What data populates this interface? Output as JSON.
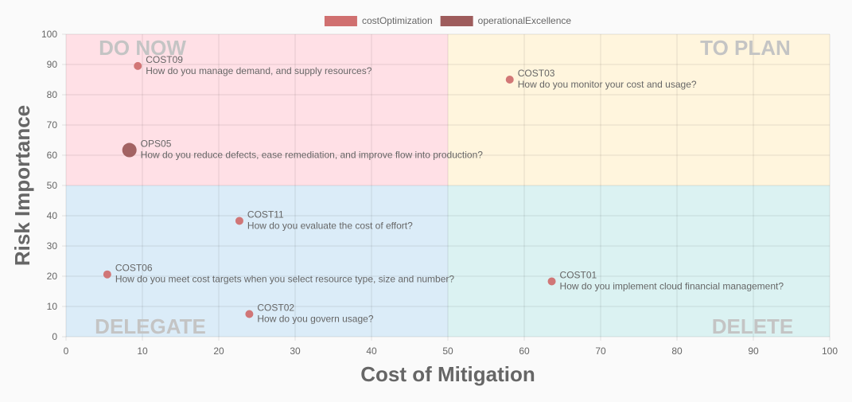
{
  "chart_data": {
    "type": "scatter",
    "xlabel": "Cost of Mitigation",
    "ylabel": "Risk Importance",
    "xlim": [
      0,
      100
    ],
    "ylim": [
      0,
      100
    ],
    "xticks": [
      0,
      10,
      20,
      30,
      40,
      50,
      60,
      70,
      80,
      90,
      100
    ],
    "yticks": [
      0,
      10,
      20,
      30,
      40,
      50,
      60,
      70,
      80,
      90,
      100
    ],
    "grid": true,
    "legend_position": "top-center",
    "quadrants": [
      {
        "label": "DO NOW",
        "x": [
          0,
          50
        ],
        "y": [
          50,
          100
        ],
        "color": "#ffe0e6"
      },
      {
        "label": "TO PLAN",
        "x": [
          50,
          100
        ],
        "y": [
          50,
          100
        ],
        "color": "#fff5dd"
      },
      {
        "label": "DELEGATE",
        "x": [
          0,
          50
        ],
        "y": [
          0,
          50
        ],
        "color": "#dbecf8"
      },
      {
        "label": "DELETE",
        "x": [
          50,
          100
        ],
        "y": [
          0,
          50
        ],
        "color": "#dbf2f2"
      }
    ],
    "series": [
      {
        "name": "costOptimization",
        "color": "#d07070",
        "points": [
          {
            "code": "COST09",
            "question": "How do you manage demand, and supply resources?",
            "x": 9.4,
            "y": 89.5,
            "r": 5
          },
          {
            "code": "COST03",
            "question": "How do you monitor your cost and usage?",
            "x": 58.1,
            "y": 85.0,
            "r": 5
          },
          {
            "code": "COST11",
            "question": "How do you evaluate the cost of effort?",
            "x": 22.7,
            "y": 38.3,
            "r": 5
          },
          {
            "code": "COST06",
            "question": "How do you meet cost targets when you select resource type, size and number?",
            "x": 5.4,
            "y": 20.6,
            "r": 5
          },
          {
            "code": "COST01",
            "question": "How do you implement cloud financial management?",
            "x": 63.6,
            "y": 18.3,
            "r": 5
          },
          {
            "code": "COST02",
            "question": "How do you govern usage?",
            "x": 24.0,
            "y": 7.5,
            "r": 5
          }
        ]
      },
      {
        "name": "operationalExcellence",
        "color": "#9e5c5c",
        "points": [
          {
            "code": "OPS05",
            "question": "How do you reduce defects, ease remediation, and improve flow into production?",
            "x": 8.3,
            "y": 61.7,
            "r": 9
          }
        ]
      }
    ]
  }
}
